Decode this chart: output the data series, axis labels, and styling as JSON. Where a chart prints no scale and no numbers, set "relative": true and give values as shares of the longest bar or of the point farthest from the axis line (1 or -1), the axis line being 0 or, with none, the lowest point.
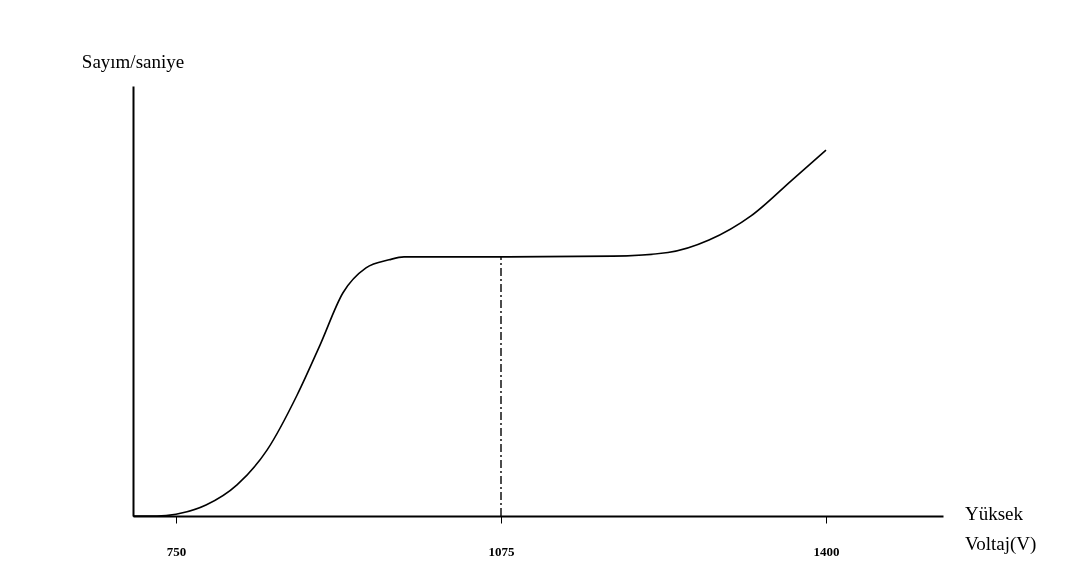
{
  "chart_data": {
    "type": "line",
    "relative": true,
    "xlabel": "Yüksek Voltaj(V)",
    "ylabel": "Sayım/saniye",
    "x": [
      707,
      731,
      750,
      780,
      811,
      841,
      871,
      894,
      917,
      940,
      963,
      978,
      1075,
      1187,
      1242,
      1283,
      1325,
      1366,
      1400
    ],
    "series": [
      {
        "color": "#000000",
        "values": [
          0,
          0,
          0.005,
          0.03,
          0.085,
          0.18,
          0.33,
          0.467,
          0.61,
          0.678,
          0.7,
          0.708,
          0.708,
          0.71,
          0.72,
          0.754,
          0.82,
          0.918,
          1.0
        ]
      }
    ],
    "xlim": [
      707,
      1517
    ],
    "xticks": [
      750,
      1075,
      1400
    ],
    "grid": false,
    "marker": "none",
    "line_style": "solid",
    "ref_lines": [
      {
        "axis": "x",
        "value": 1075,
        "line_style": "dashed",
        "color": "#000000"
      }
    ]
  }
}
